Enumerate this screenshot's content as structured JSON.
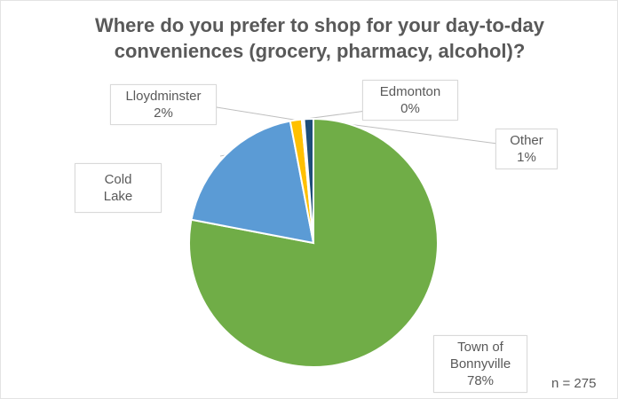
{
  "chart_data": {
    "type": "pie",
    "title": "Where do you prefer to shop for your day-to-day conveniences (grocery, pharmacy, alcohol)?",
    "slices": [
      {
        "name": "Town of Bonnyville",
        "value": 78,
        "label_value": "78%",
        "color": "#70ad47"
      },
      {
        "name": "Cold Lake",
        "value": 19,
        "label_value": "",
        "color": "#5b9bd5"
      },
      {
        "name": "Lloydminster",
        "value": 1.5,
        "label_value": "2%",
        "color": "#ffc000"
      },
      {
        "name": "Edmonton",
        "value": 0.3,
        "label_value": "0%",
        "color": "#f2f2f2"
      },
      {
        "name": "Other",
        "value": 1.2,
        "label_value": "1%",
        "color": "#1f4e79"
      }
    ],
    "note": "n = 275"
  }
}
